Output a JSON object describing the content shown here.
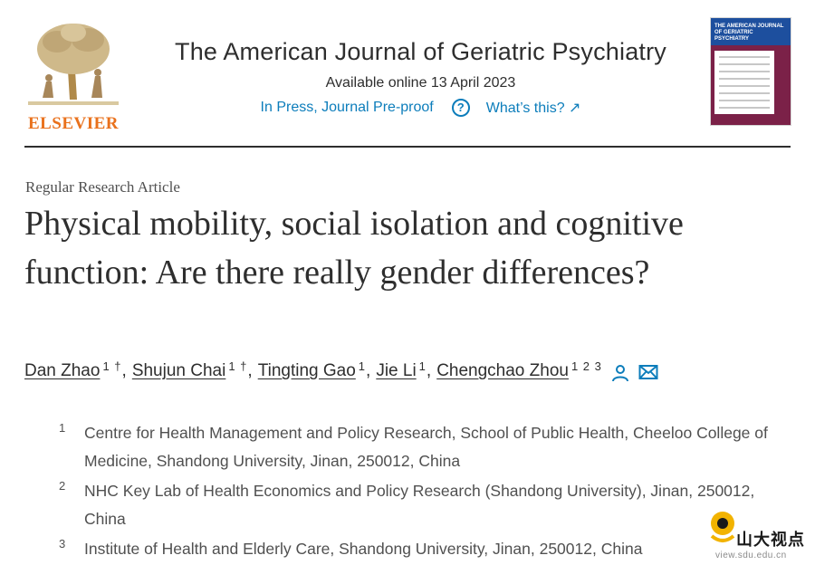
{
  "publisher": {
    "name": "ELSEVIER"
  },
  "journal": {
    "title": "The American Journal of Geriatric Psychiatry",
    "available_online": "Available online 13 April 2023",
    "status": "In Press, Journal Pre-proof",
    "whats_this": "What’s this? ↗"
  },
  "cover": {
    "title": "THE AMERICAN JOURNAL OF GERIATRIC PSYCHIATRY"
  },
  "article": {
    "type": "Regular Research Article",
    "title": "Physical mobility, social isolation and cognitive function: Are there really gender differences?"
  },
  "authors": [
    {
      "name": "Dan Zhao",
      "sup": "1 †"
    },
    {
      "name": "Shujun Chai",
      "sup": "1 †"
    },
    {
      "name": "Tingting Gao",
      "sup": "1"
    },
    {
      "name": "Jie Li",
      "sup": "1"
    },
    {
      "name": "Chengchao Zhou",
      "sup": "1 2 3"
    }
  ],
  "affiliations": [
    {
      "num": "1",
      "text": "Centre for Health Management and Policy Research, School of Public Health, Cheeloo College of Medicine, Shandong University, Jinan, 250012, China"
    },
    {
      "num": "2",
      "text": "NHC Key Lab of Health Economics and Policy Research (Shandong University), Jinan, 250012, China"
    },
    {
      "num": "3",
      "text": "Institute of Health and Elderly Care, Shandong University, Jinan, 250012, China"
    }
  ],
  "watermark": {
    "text": "山大视点",
    "url": "view.sdu.edu.cn"
  },
  "colors": {
    "link": "#0c7dbb",
    "elsevier_orange": "#e9711c",
    "text": "#2e2e2e"
  },
  "icons": [
    "elsevier-tree-logo",
    "help-icon",
    "external-link-icon",
    "person-icon",
    "mail-icon"
  ]
}
